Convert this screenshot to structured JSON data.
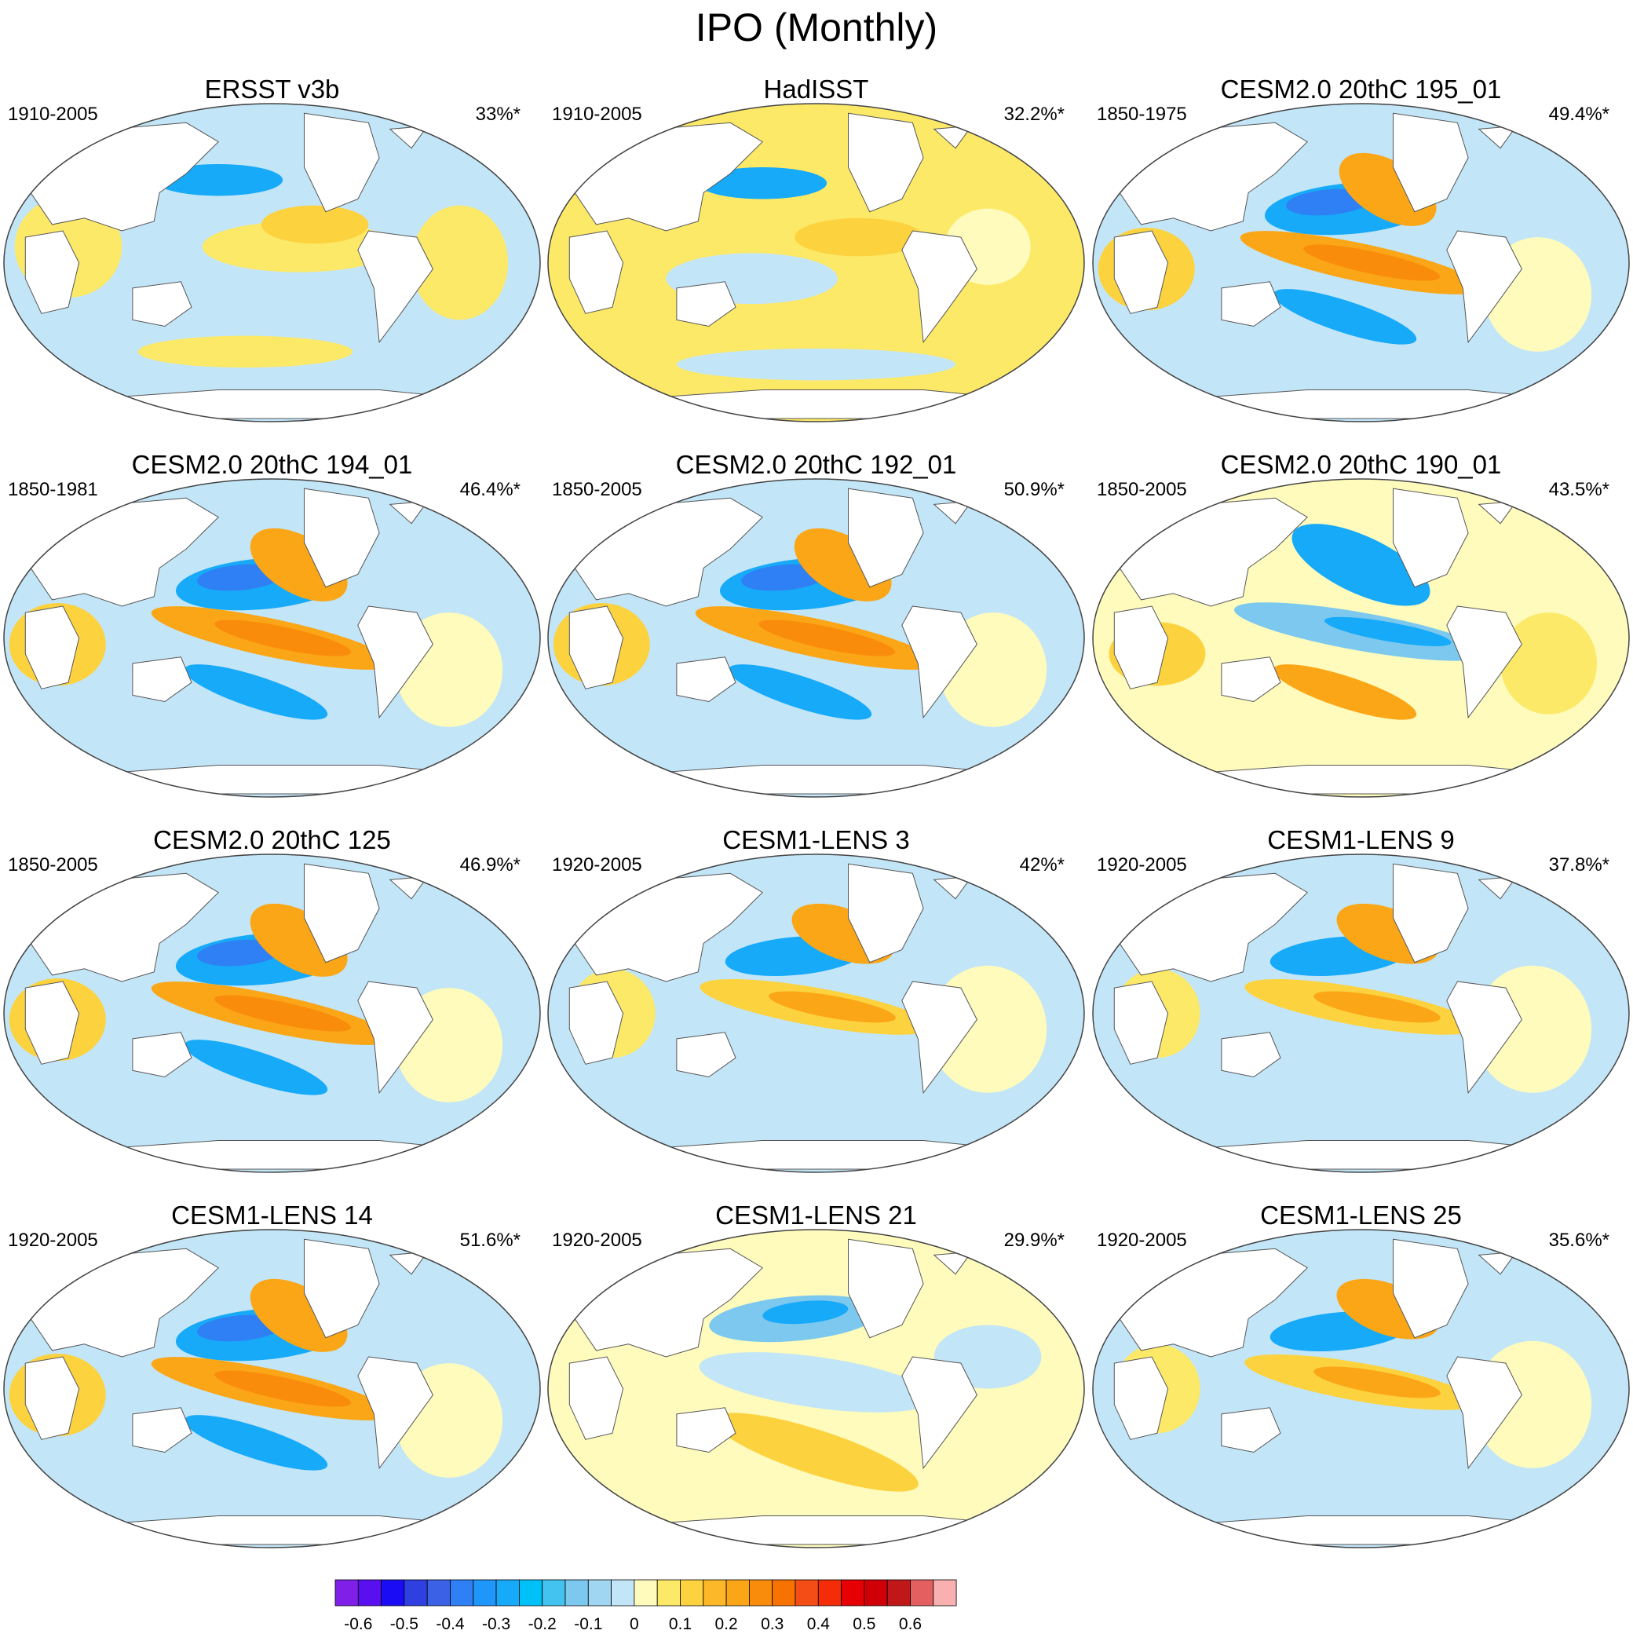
{
  "figure": {
    "title": "IPO (Monthly)"
  },
  "panels": [
    {
      "title": "ERSST v3b",
      "years": "1910-2005",
      "percent": "33%*",
      "pattern": "obs1"
    },
    {
      "title": "HadISST",
      "years": "1910-2005",
      "percent": "32.2%*",
      "pattern": "obs2"
    },
    {
      "title": "CESM2.0 20thC 195_01",
      "years": "1850-1975",
      "percent": "49.4%*",
      "pattern": "strong"
    },
    {
      "title": "CESM2.0 20thC 194_01",
      "years": "1850-1981",
      "percent": "46.4%*",
      "pattern": "strong"
    },
    {
      "title": "CESM2.0 20thC 192_01",
      "years": "1850-2005",
      "percent": "50.9%*",
      "pattern": "strong"
    },
    {
      "title": "CESM2.0 20thC 190_01",
      "years": "1850-2005",
      "percent": "43.5%*",
      "pattern": "inverse"
    },
    {
      "title": "CESM2.0 20thC 125",
      "years": "1850-2005",
      "percent": "46.9%*",
      "pattern": "strong"
    },
    {
      "title": "CESM1-LENS 3",
      "years": "1920-2005",
      "percent": "42%*",
      "pattern": "medium"
    },
    {
      "title": "CESM1-LENS 9",
      "years": "1920-2005",
      "percent": "37.8%*",
      "pattern": "medium"
    },
    {
      "title": "CESM1-LENS 14",
      "years": "1920-2005",
      "percent": "51.6%*",
      "pattern": "strong"
    },
    {
      "title": "CESM1-LENS 21",
      "years": "1920-2005",
      "percent": "29.9%*",
      "pattern": "weak"
    },
    {
      "title": "CESM1-LENS 25",
      "years": "1920-2005",
      "percent": "35.6%*",
      "pattern": "medium"
    }
  ],
  "colorbar": {
    "colors": [
      "#7f1fe8",
      "#5a0ff0",
      "#1a0cf5",
      "#3040e0",
      "#3b62e6",
      "#2f7ff5",
      "#1e96fa",
      "#17aaf8",
      "#00c0f8",
      "#42c3f0",
      "#7cc8ef",
      "#a0d6f1",
      "#c2e5f7",
      "#fefbbc",
      "#fde968",
      "#fdd23f",
      "#fcb829",
      "#fba617",
      "#fa8c0c",
      "#f77200",
      "#f54d16",
      "#f42c08",
      "#e60006",
      "#d00008",
      "#c01818",
      "#e46060",
      "#f9b0b0"
    ],
    "tick_labels": [
      "-0.6",
      "-0.5",
      "-0.4",
      "-0.3",
      "-0.2",
      "-0.1",
      "0",
      "0.1",
      "0.2",
      "0.3",
      "0.4",
      "0.5",
      "0.6"
    ]
  }
}
